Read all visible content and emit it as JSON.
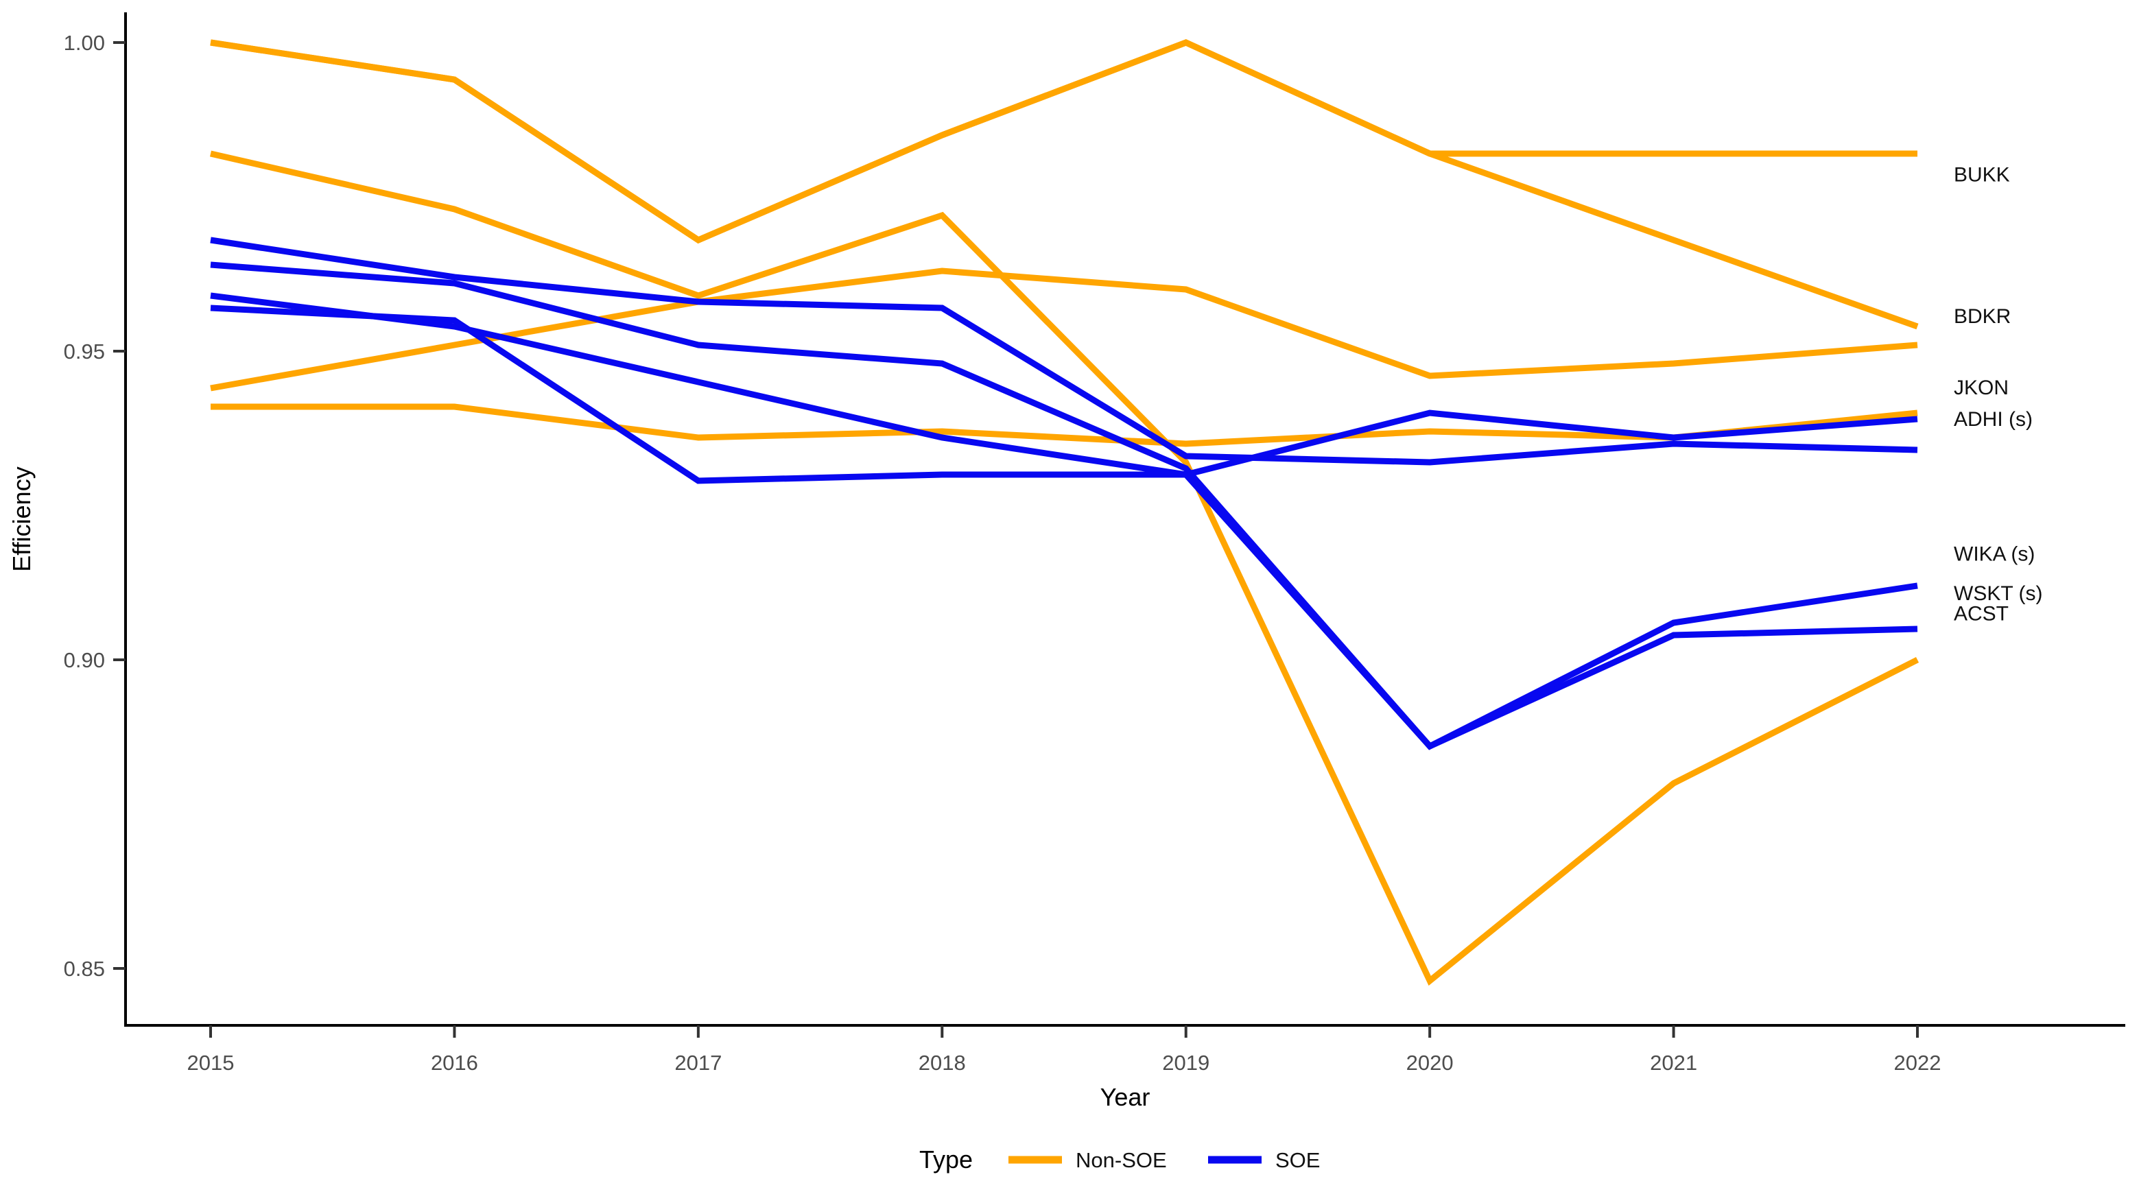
{
  "chart_data": {
    "type": "line",
    "title": "",
    "xlabel": "Year",
    "ylabel": "Efficiency",
    "x": [
      2015,
      2016,
      2017,
      2018,
      2019,
      2020,
      2021,
      2022
    ],
    "x_tick_labels": [
      "2015",
      "2016",
      "2017",
      "2018",
      "2019",
      "2020",
      "2021",
      "2022"
    ],
    "y_ticks": [
      1.0,
      0.95,
      0.9,
      0.85
    ],
    "y_tick_labels": [
      "1.00",
      "0.95",
      "0.90",
      "0.85"
    ],
    "ylim": [
      0.841,
      1.005
    ],
    "grid": false,
    "legend": {
      "title": "Type",
      "position": "bottom",
      "items": [
        {
          "label": "Non-SOE",
          "color": "#FFA500"
        },
        {
          "label": "SOE",
          "color": "#0808F0"
        }
      ]
    },
    "series": [
      {
        "name": "BUKK",
        "type_group": "Non-SOE",
        "color": "#FFA500",
        "end_label": "BUKK",
        "label_at_value": 0.9787,
        "values": [
          1.0,
          0.994,
          0.968,
          0.985,
          1.0,
          0.982,
          0.982,
          0.982
        ]
      },
      {
        "name": "non-soe-unlabeled",
        "type_group": "Non-SOE",
        "color": "#FFA500",
        "end_label": "",
        "label_at_value": null,
        "values": [
          1.0,
          0.994,
          0.968,
          0.985,
          1.0,
          0.982,
          0.968,
          0.954
        ]
      },
      {
        "name": "BDKR",
        "type_group": "Non-SOE",
        "color": "#FFA500",
        "end_label": "BDKR",
        "label_at_value": 0.9558,
        "values": [
          0.944,
          0.951,
          0.958,
          0.963,
          0.96,
          0.946,
          0.948,
          0.951
        ]
      },
      {
        "name": "JKON",
        "type_group": "Non-SOE",
        "color": "#FFA500",
        "end_label": "JKON",
        "label_at_value": 0.9442,
        "values": [
          0.941,
          0.941,
          0.936,
          0.937,
          0.935,
          0.937,
          0.936,
          0.94
        ]
      },
      {
        "name": "ACST",
        "type_group": "Non-SOE",
        "color": "#FFA500",
        "end_label": "ACST",
        "label_at_value": 0.9076,
        "values": [
          0.982,
          0.973,
          0.959,
          0.972,
          0.932,
          0.848,
          0.88,
          0.9
        ]
      },
      {
        "name": "ADHI",
        "type_group": "SOE",
        "color": "#0808F0",
        "end_label": "ADHI (s)",
        "label_at_value": 0.9391,
        "values": [
          0.968,
          0.962,
          0.958,
          0.957,
          0.933,
          0.932,
          0.935,
          0.934
        ]
      },
      {
        "name": "WIKA",
        "type_group": "SOE",
        "color": "#0808F0",
        "end_label": "WIKA (s)",
        "label_at_value": 0.9173,
        "values": [
          0.964,
          0.961,
          0.951,
          0.948,
          0.931,
          0.886,
          0.906,
          0.912
        ]
      },
      {
        "name": "WSKT",
        "type_group": "SOE",
        "color": "#0808F0",
        "end_label": "WSKT (s)",
        "label_at_value": 0.9109,
        "values": [
          0.959,
          0.954,
          0.945,
          0.936,
          0.93,
          0.886,
          0.904,
          0.905
        ]
      },
      {
        "name": "soe-unlabeled",
        "type_group": "SOE",
        "color": "#0808F0",
        "end_label": "",
        "label_at_value": null,
        "values": [
          0.957,
          0.955,
          0.929,
          0.93,
          0.93,
          0.94,
          0.936,
          0.939
        ]
      }
    ]
  },
  "colors": {
    "non_soe": "#FFA500",
    "soe": "#0808F0",
    "axis_line": "#000000",
    "tick_text": "#4d4d4d",
    "background": "#FFFFFF"
  }
}
